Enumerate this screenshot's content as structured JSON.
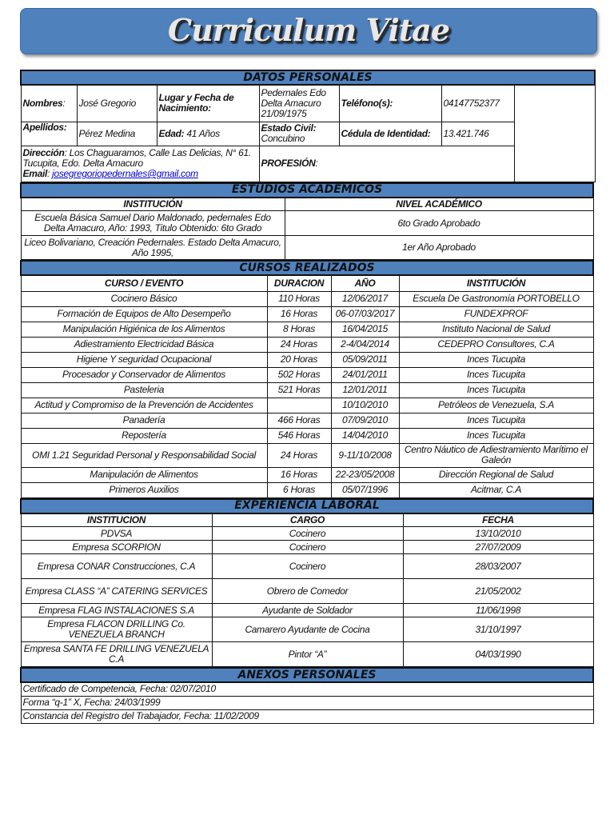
{
  "title": "Curriculum Vitae",
  "datos": {
    "header": "DATOS PERSONALES",
    "nombres_label": "Nombres",
    "nombres": "José Gregorio",
    "lugar_label": "Lugar y Fecha  de Nacimiento:",
    "lugar": "Pedernales Edo Delta Amacuro 21/09/1975",
    "telefono_label": "Teléfono(s):",
    "telefono": "04147752377",
    "apellidos_label": "Apellidos:",
    "apellidos": "Pérez Medina",
    "edad_label": "Edad:",
    "edad": "41 Años",
    "civil_label": "Estado Civil:",
    "civil": "Concubino",
    "cedula_label": "Cédula de Identidad:",
    "cedula": "13.421.746",
    "direccion_label": "Dirección",
    "direccion": "Los Chaguaramos, Calle Las Delicias, N° 61. Tucupita, Edo. Delta Amacuro",
    "email_label": "Email",
    "email": "josegregoriopedernales@gmail.com",
    "profesion_label": "PROFESIÓN"
  },
  "estudios": {
    "header": "ESTUDIOS ACADÉMICOS",
    "columns": [
      "INSTITUCIÓN",
      "NIVEL ACADÉMICO"
    ],
    "rows": [
      [
        "Escuela Básica Samuel Dario Maldonado, pedernales Edo Delta Amacuro, Año: 1993, Titulo Obtenido: 6to Grado",
        "6to Grado Aprobado"
      ],
      [
        "Liceo Bolivariano, Creación Pedernales. Estado Delta Amacuro, Año 1995,",
        "1er Año Aprobado"
      ]
    ]
  },
  "cursos": {
    "header": "CURSOS REALIZADOS",
    "columns": [
      "CURSO  / EVENTO",
      "DURACION",
      "AÑO",
      "INSTITUCIÓN"
    ],
    "rows": [
      [
        "Cocinero Básico",
        "110 Horas",
        "12/06/2017",
        "Escuela De Gastronomía PORTOBELLO"
      ],
      [
        "Formación de Equipos de Alto Desempeño",
        "16 Horas",
        "06-07/03/2017",
        "FUNDEXPROF"
      ],
      [
        "Manipulación Higiénica de los Alimentos",
        "8 Horas",
        "16/04/2015",
        "Instituto Nacional de Salud"
      ],
      [
        "Adiestramiento Electricidad Básica",
        "24 Horas",
        "2-4/04/2014",
        "CEDEPRO Consultores, C.A"
      ],
      [
        "Higiene Y seguridad Ocupacional",
        "20 Horas",
        "05/09/2011",
        "Inces Tucupita"
      ],
      [
        "Procesador y Conservador de Alimentos",
        "502 Horas",
        "24/01/2011",
        "Inces Tucupita"
      ],
      [
        "Pasteleria",
        "521 Horas",
        "12/01/2011",
        "Inces Tucupita"
      ],
      [
        "Actitud y Compromiso de la Prevención de Accidentes",
        "",
        "10/10/2010",
        "Petróleos de Venezuela, S.A"
      ],
      [
        "Panadería",
        "466 Horas",
        "07/09/2010",
        "Inces Tucupita"
      ],
      [
        "Repostería",
        "546 Horas",
        "14/04/2010",
        "Inces Tucupita"
      ],
      [
        "OMI 1.21 Seguridad Personal y Responsabilidad Social",
        "24 Horas",
        "9-11/10/2008",
        "Centro Náutico de Adiestramiento Marítimo el Galeón"
      ],
      [
        "Manipulación de Alimentos",
        "16 Horas",
        "22-23/05/2008",
        "Dirección Regional de Salud"
      ],
      [
        "Primeros Auxilios",
        "6 Horas",
        "05/07/1996",
        "Acitmar, C.A"
      ]
    ]
  },
  "experiencia": {
    "header": "EXPERIENCIA LABORAL",
    "columns": [
      "INSTITUCION",
      "CARGO",
      "FECHA"
    ],
    "rows": [
      [
        "PDVSA",
        "Cocinero",
        "13/10/2010"
      ],
      [
        "Empresa SCORPION",
        "Cocinero",
        "27/07/2009"
      ],
      [
        "Empresa CONAR Construcciones, C.A",
        "Cocinero",
        "28/03/2007"
      ],
      [
        "Empresa CLASS “A” CATERING SERVICES",
        "Obrero de Comedor",
        "21/05/2002"
      ],
      [
        "Empresa FLAG INSTALACIONES S.A",
        "Ayudante de Soldador",
        "11/06/1998"
      ],
      [
        "Empresa FLACON DRILLING Co. VENEZUELA BRANCH",
        "Camarero Ayudante de Cocina",
        "31/10/1997"
      ],
      [
        "Empresa SANTA FE DRILLING VENEZUELA C.A",
        "Pintor “A”",
        "04/03/1990"
      ]
    ]
  },
  "anexos": {
    "header": "ANEXOS PERSONALES",
    "items": [
      "Certificado de Competencia, Fecha: 02/07/2010",
      "Forma “q-1” X, Fecha: 24/03/1999",
      "Constancia del Registro del Trabajador, Fecha: 11/02/2009"
    ]
  }
}
